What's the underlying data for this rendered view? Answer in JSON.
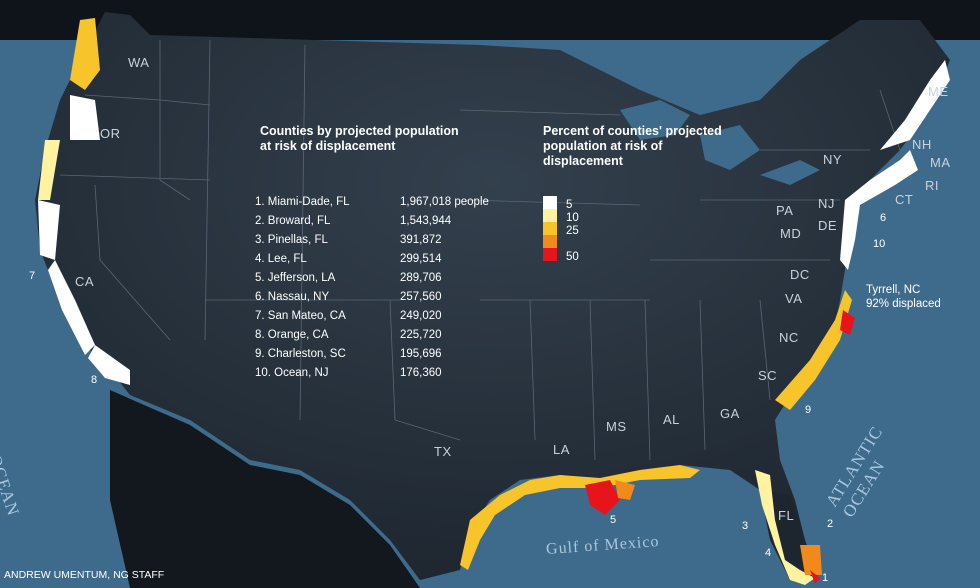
{
  "list": {
    "title": "Counties by projected population at risk of displacement",
    "items": [
      {
        "name": "1. Miami-Dade, FL",
        "value": "1,967,018 people"
      },
      {
        "name": "2. Broward, FL",
        "value": "1,543,944"
      },
      {
        "name": "3. Pinellas, FL",
        "value": "391,872"
      },
      {
        "name": "4. Lee, FL",
        "value": "299,514"
      },
      {
        "name": "5. Jefferson, LA",
        "value": "289,706"
      },
      {
        "name": "6. Nassau, NY",
        "value": "257,560"
      },
      {
        "name": "7. San Mateo, CA",
        "value": "249,020"
      },
      {
        "name": "8. Orange, CA",
        "value": "225,720"
      },
      {
        "name": "9. Charleston, SC",
        "value": "195,696"
      },
      {
        "name": "10. Ocean, NJ",
        "value": "176,360"
      }
    ]
  },
  "legend": {
    "title": "Percent of counties' projected population at risk of displacement",
    "items": [
      {
        "label": "5",
        "color": "#ffffff"
      },
      {
        "label": "10",
        "color": "#fff3a0"
      },
      {
        "label": "25",
        "color": "#f7c52b"
      },
      {
        "label": "",
        "color": "#f08a1c"
      },
      {
        "label": "50",
        "color": "#e8141c"
      }
    ]
  },
  "states": [
    "WA",
    "OR",
    "CA",
    "TX",
    "LA",
    "MS",
    "AL",
    "GA",
    "FL",
    "SC",
    "NC",
    "VA",
    "DC",
    "MD",
    "DE",
    "NJ",
    "PA",
    "NY",
    "CT",
    "RI",
    "MA",
    "NH",
    "ME"
  ],
  "oceans": {
    "pacific": "PACIFIC OCEAN",
    "atlantic": "ATLANTIC OCEAN",
    "gulf": "Gulf of Mexico"
  },
  "callout": {
    "line1": "Tyrrell, NC",
    "line2": "92% displaced"
  },
  "markers": [
    "1",
    "2",
    "3",
    "4",
    "5",
    "6",
    "7",
    "8",
    "9",
    "10"
  ],
  "credit": "ANDREW UMENTUM, NG STAFF"
}
